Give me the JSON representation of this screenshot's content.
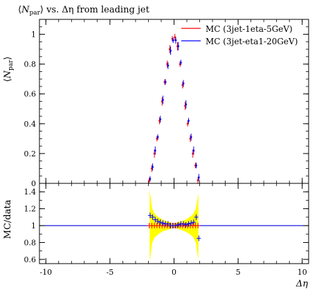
{
  "chart_data": [
    {
      "type": "scatter",
      "title": "⟨N_par⟩ vs. Δη from leading jet",
      "title_parts": {
        "pre": "⟨",
        "n": "N",
        "sub": "par",
        "post": "⟩ vs. Δη from leading jet"
      },
      "xlabel": "",
      "ylabel": "⟨N_par⟩",
      "ylabel_parts": {
        "pre": "⟨",
        "n": "N",
        "sub": "par",
        "post": "⟩"
      },
      "xlim": [
        -10.5,
        10.5
      ],
      "ylim": [
        0,
        1.1
      ],
      "yticks": [
        0,
        0.2,
        0.4,
        0.6,
        0.8,
        1
      ],
      "ytick_labels": [
        "0",
        "0.2",
        "0.4",
        "0.6",
        "0.8",
        "1"
      ],
      "legend_position": "top-right",
      "series": [
        {
          "name": "MC (3jet-1eta-5GeV)",
          "color": "#ff0000",
          "x": [
            -1.9,
            -1.7,
            -1.5,
            -1.3,
            -1.1,
            -0.9,
            -0.7,
            -0.5,
            -0.3,
            -0.1,
            0.1,
            0.3,
            0.5,
            0.7,
            0.9,
            1.1,
            1.3,
            1.5,
            1.7,
            1.9
          ],
          "values": [
            0.02,
            0.1,
            0.2,
            0.3,
            0.42,
            0.55,
            0.68,
            0.8,
            0.9,
            0.97,
            0.98,
            0.92,
            0.8,
            0.66,
            0.52,
            0.4,
            0.3,
            0.2,
            0.12,
            0.02
          ]
        },
        {
          "name": "MC (3jet-eta1-20GeV)",
          "color": "#0000ff",
          "x": [
            -1.9,
            -1.7,
            -1.5,
            -1.3,
            -1.1,
            -0.9,
            -0.7,
            -0.5,
            -0.3,
            -0.1,
            0.1,
            0.3,
            0.5,
            0.7,
            0.9,
            1.1,
            1.3,
            1.5,
            1.7,
            1.9
          ],
          "values": [
            0.03,
            0.11,
            0.22,
            0.31,
            0.43,
            0.56,
            0.68,
            0.79,
            0.89,
            0.96,
            0.96,
            0.92,
            0.81,
            0.67,
            0.53,
            0.42,
            0.31,
            0.22,
            0.12,
            0.04
          ]
        }
      ]
    },
    {
      "type": "scatter",
      "xlabel": "Δη",
      "ylabel": "MC/data",
      "xlim": [
        -10.5,
        10.5
      ],
      "ylim": [
        0.55,
        1.5
      ],
      "xticks": [
        -10,
        -5,
        0,
        5,
        10
      ],
      "xtick_labels": [
        "-10",
        "-5",
        "0",
        "5",
        "10"
      ],
      "yticks": [
        0.6,
        0.8,
        1,
        1.2,
        1.4
      ],
      "ytick_labels": [
        "0.6",
        "0.8",
        "1",
        "1.2",
        "1.4"
      ],
      "reference_line": 1,
      "band_color": "#ffff00",
      "band": {
        "x": [
          -1.9,
          -1.7,
          -1.5,
          -1.3,
          -1.1,
          -0.9,
          -0.7,
          -0.5,
          -0.3,
          -0.1,
          0.1,
          0.3,
          0.5,
          0.7,
          0.9,
          1.1,
          1.3,
          1.5,
          1.7,
          1.9
        ],
        "lo": [
          0.58,
          0.8,
          0.86,
          0.89,
          0.91,
          0.93,
          0.94,
          0.95,
          0.96,
          0.97,
          0.97,
          0.96,
          0.95,
          0.94,
          0.93,
          0.91,
          0.89,
          0.86,
          0.8,
          0.6
        ],
        "hi": [
          1.42,
          1.2,
          1.14,
          1.11,
          1.09,
          1.07,
          1.06,
          1.05,
          1.04,
          1.03,
          1.03,
          1.04,
          1.05,
          1.06,
          1.07,
          1.09,
          1.11,
          1.14,
          1.2,
          1.38
        ]
      },
      "series": [
        {
          "name": "MC (3jet-1eta-5GeV)",
          "color": "#ff0000",
          "x": [
            -1.9,
            -1.7,
            -1.5,
            -1.3,
            -1.1,
            -0.9,
            -0.7,
            -0.5,
            -0.3,
            -0.1,
            0.1,
            0.3,
            0.5,
            0.7,
            0.9,
            1.1,
            1.3,
            1.5,
            1.7,
            1.9
          ],
          "values": [
            1,
            1,
            1,
            1,
            1,
            1,
            1,
            1,
            1,
            1,
            1,
            1,
            1,
            1,
            1,
            1,
            1,
            1,
            1,
            1
          ]
        },
        {
          "name": "MC (3jet-eta1-20GeV)",
          "color": "#0000ff",
          "x": [
            -1.9,
            -1.7,
            -1.5,
            -1.3,
            -1.1,
            -0.9,
            -0.7,
            -0.5,
            -0.3,
            -0.1,
            0.1,
            0.3,
            0.5,
            0.7,
            0.9,
            1.1,
            1.3,
            1.5,
            1.7,
            1.9
          ],
          "values": [
            1.12,
            1.1,
            1.07,
            1.05,
            1.04,
            1.03,
            1.02,
            1.02,
            1.0,
            1.0,
            1.0,
            1.01,
            1.02,
            1.02,
            1.01,
            1.02,
            1.03,
            1.04,
            1.1,
            0.85
          ]
        }
      ]
    }
  ]
}
